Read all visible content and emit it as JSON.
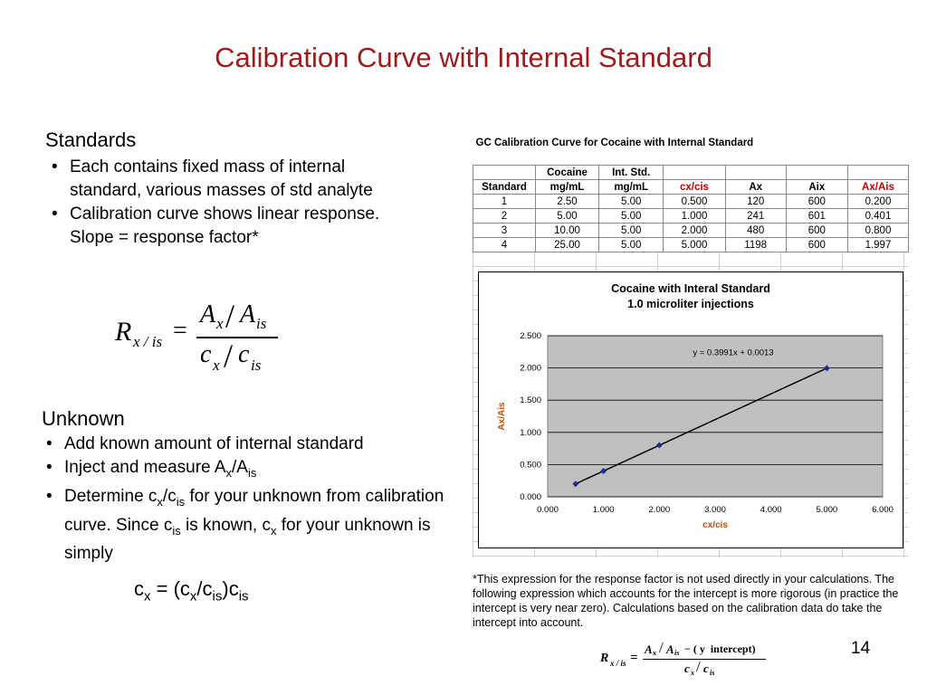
{
  "title": "Calibration Curve with Internal Standard",
  "standards": {
    "heading": "Standards",
    "bullets": [
      "Each contains fixed mass of internal standard, various masses of std analyte",
      "Calibration curve shows linear response.  Slope = response factor*"
    ]
  },
  "equation_main": {
    "lhs_main": "R",
    "lhs_sub": "x / is",
    "num_a": "A",
    "num_a_sub": "x",
    "num_b": "A",
    "num_b_sub": "is",
    "den_a": "c",
    "den_a_sub": "x",
    "den_b": "c",
    "den_b_sub": "is",
    "equals": "=",
    "slash": "/"
  },
  "unknown": {
    "heading": "Unknown",
    "b1": "Add known amount of internal standard",
    "b2_pre": "Inject and measure A",
    "b2_sub1": "x",
    "b2_mid": "/A",
    "b2_sub2": "is",
    "b3_t1": "Determine c",
    "b3_s1": "x",
    "b3_t2": "/c",
    "b3_s2": "is",
    "b3_t3": " for your unknown from calibration curve.  Since c",
    "b3_s3": "is",
    "b3_t4": " is known, c",
    "b3_s4": "x",
    "b3_t5": " for your unknown is simply"
  },
  "cx_eq": {
    "t1": "c",
    "s1": "x",
    "t2": " = (c",
    "s2": "x",
    "t3": "/c",
    "s3": "is",
    "t4": ")c",
    "s4": "is"
  },
  "table": {
    "title": "GC Calibration Curve for Cocaine with Internal Standard",
    "header_top": [
      "",
      "Cocaine",
      "Int. Std.",
      "",
      "",
      "",
      ""
    ],
    "header_bottom": [
      "Standard",
      "mg/mL",
      "mg/mL",
      "cx/cis",
      "Ax",
      "Aix",
      "Ax/Ais"
    ],
    "rows": [
      [
        "1",
        "2.50",
        "5.00",
        "0.500",
        "120",
        "600",
        "0.200"
      ],
      [
        "2",
        "5.00",
        "5.00",
        "1.000",
        "241",
        "601",
        "0.401"
      ],
      [
        "3",
        "10.00",
        "5.00",
        "2.000",
        "480",
        "600",
        "0.800"
      ],
      [
        "4",
        "25.00",
        "5.00",
        "5.000",
        "1198",
        "600",
        "1.997"
      ]
    ]
  },
  "chart_data": {
    "type": "scatter",
    "title": "Cocaine with Interal Standard",
    "subtitle": "1.0 microliter injections",
    "xlabel": "cx/cis",
    "ylabel": "Ax/Ais",
    "x": [
      0.5,
      1.0,
      2.0,
      5.0
    ],
    "y": [
      0.2,
      0.401,
      0.8,
      1.997
    ],
    "xlim": [
      0,
      6
    ],
    "ylim": [
      0,
      2.5
    ],
    "xticks": [
      "0.000",
      "1.000",
      "2.000",
      "3.000",
      "4.000",
      "5.000",
      "6.000"
    ],
    "yticks": [
      "0.000",
      "0.500",
      "1.000",
      "1.500",
      "2.000",
      "2.500"
    ],
    "trendline": {
      "slope": 0.3991,
      "intercept": 0.0013,
      "label": "y = 0.3991x + 0.0013"
    },
    "grid": true,
    "plot_background": "#c0c0c0",
    "marker_color": "#1f2f8f",
    "axis_label_color": "#c0500a"
  },
  "footnote": "*This expression for the response factor is not used directly in your calculations.  The following expression which accounts for the intercept is more rigorous (in practice the intercept is very near zero).  Calculations based on the calibration data do take the intercept into account.",
  "equation_small": {
    "lhs_main": "R",
    "lhs_sub": "x / is",
    "equals": "=",
    "num_a": "A",
    "num_a_sub": "x",
    "slash": "/",
    "num_b": "A",
    "num_b_sub": "is",
    "num_rest": " − ( y  intercept)",
    "den_a": "c",
    "den_a_sub": "x",
    "den_b": "c",
    "den_b_sub": "is"
  },
  "page_number": "14",
  "colors": {
    "title": "#9b1c1c",
    "header_red": "#c00000"
  }
}
